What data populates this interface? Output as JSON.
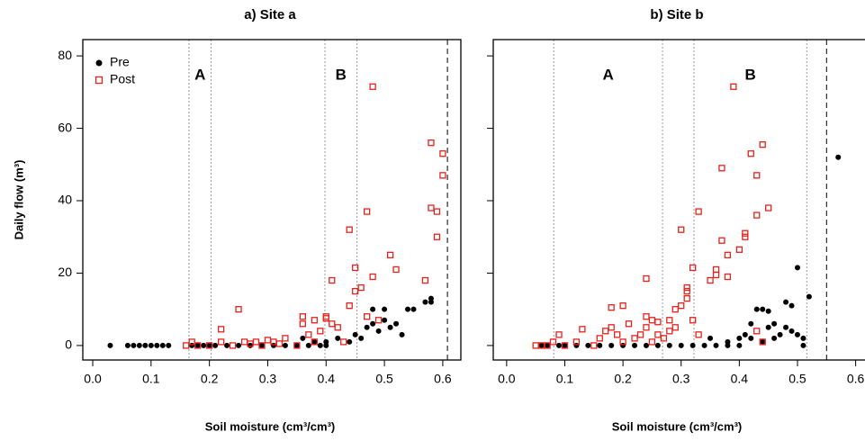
{
  "chart_data": [
    {
      "type": "scatter",
      "title": "a) Site a",
      "xlabel": "Soil moisture (cm³/cm³)",
      "ylabel": "Daily flow (m³)",
      "xlim": [
        -0.017,
        0.631
      ],
      "ylim": [
        -4,
        84.5
      ],
      "xticks": [
        {
          "value": 0,
          "label": "0.0"
        },
        0.1,
        0.2,
        0.3,
        0.4,
        0.5,
        0.6
      ],
      "yticks": [
        0,
        20,
        40,
        60,
        80
      ],
      "ytick_labels": true,
      "legend": "top-left",
      "vlines": [
        0.165,
        0.203,
        0.398,
        0.453
      ],
      "dashed_vline": 0.608,
      "regions": [
        {
          "label": "A",
          "from": 0.165,
          "to": 0.203
        },
        {
          "label": "B",
          "from": 0.398,
          "to": 0.453
        }
      ],
      "series": [
        {
          "name": "Pre",
          "color": "#000000",
          "marker": "circle",
          "x": [
            0.03,
            0.06,
            0.07,
            0.08,
            0.09,
            0.1,
            0.11,
            0.12,
            0.13,
            0.17,
            0.18,
            0.19,
            0.2,
            0.21,
            0.23,
            0.25,
            0.27,
            0.29,
            0.31,
            0.33,
            0.35,
            0.37,
            0.39,
            0.4,
            0.36,
            0.38,
            0.4,
            0.42,
            0.44,
            0.45,
            0.46,
            0.47,
            0.48,
            0.48,
            0.49,
            0.5,
            0.5,
            0.51,
            0.52,
            0.53,
            0.54,
            0.55,
            0.57,
            0.58,
            0.58
          ],
          "y": [
            0,
            0,
            0,
            0,
            0,
            0,
            0,
            0,
            0,
            0,
            0,
            0,
            0,
            0,
            0,
            0,
            0,
            0,
            0,
            0,
            0,
            0,
            0,
            0,
            2,
            1,
            1,
            2,
            1,
            3,
            2,
            5,
            6,
            10,
            4,
            7,
            10,
            5,
            6,
            3,
            10,
            10,
            12,
            13,
            12
          ]
        },
        {
          "name": "Post",
          "color": "#e8211c",
          "marker": "square",
          "x": [
            0.16,
            0.17,
            0.18,
            0.2,
            0.22,
            0.25,
            0.22,
            0.24,
            0.26,
            0.27,
            0.28,
            0.29,
            0.3,
            0.31,
            0.32,
            0.33,
            0.35,
            0.36,
            0.36,
            0.37,
            0.38,
            0.38,
            0.39,
            0.4,
            0.4,
            0.41,
            0.41,
            0.42,
            0.43,
            0.44,
            0.44,
            0.45,
            0.45,
            0.46,
            0.47,
            0.47,
            0.48,
            0.48,
            0.49,
            0.51,
            0.52,
            0.57,
            0.58,
            0.58,
            0.59,
            0.59,
            0.6,
            0.6
          ],
          "y": [
            0,
            1,
            0,
            0,
            4.5,
            10,
            1,
            0,
            1,
            0.5,
            1,
            0,
            1.5,
            1,
            0.5,
            2,
            0,
            8,
            6,
            3,
            7,
            1,
            4,
            7.5,
            8,
            18,
            6,
            5,
            1,
            32,
            11,
            15,
            21.5,
            16,
            8,
            37,
            19,
            71.5,
            7,
            25,
            21,
            18,
            56,
            38,
            37,
            30,
            53,
            47
          ]
        }
      ]
    },
    {
      "type": "scatter",
      "title": "b) Site b",
      "xlabel": "Soil moisture (cm³/cm³)",
      "xlim": [
        -0.023,
        0.63
      ],
      "ylim": [
        -4,
        84.5
      ],
      "xticks": [
        {
          "value": 0,
          "label": "0.0"
        },
        0.1,
        0.2,
        0.3,
        0.4,
        0.5,
        0.6
      ],
      "yticks": [
        0,
        20,
        40,
        60,
        80
      ],
      "ytick_labels": false,
      "vlines": [
        0.081,
        0.268,
        0.322,
        0.516
      ],
      "dashed_vline": 0.55,
      "regions": [
        {
          "label": "A",
          "from": 0.081,
          "to": 0.268
        },
        {
          "label": "B",
          "from": 0.322,
          "to": 0.516
        }
      ],
      "series": [
        {
          "color": "#000000",
          "marker": "circle",
          "x": [
            0.06,
            0.07,
            0.09,
            0.1,
            0.12,
            0.14,
            0.16,
            0.18,
            0.2,
            0.22,
            0.24,
            0.26,
            0.28,
            0.3,
            0.32,
            0.34,
            0.36,
            0.38,
            0.4,
            0.35,
            0.38,
            0.4,
            0.41,
            0.42,
            0.42,
            0.43,
            0.44,
            0.44,
            0.45,
            0.45,
            0.46,
            0.46,
            0.47,
            0.48,
            0.48,
            0.49,
            0.49,
            0.5,
            0.5,
            0.51,
            0.52,
            0.51,
            0.57
          ],
          "y": [
            0,
            0,
            0,
            0,
            0,
            0,
            0,
            0,
            0,
            0,
            0,
            0,
            0,
            0,
            0,
            0,
            0,
            0,
            0,
            2,
            1,
            2,
            3,
            2,
            6,
            10,
            10,
            1,
            5,
            9.5,
            6,
            2,
            3,
            5,
            12,
            4,
            11,
            21.5,
            3,
            0,
            13.5,
            2,
            52
          ]
        },
        {
          "color": "#e8211c",
          "marker": "square",
          "x": [
            0.05,
            0.06,
            0.07,
            0.08,
            0.09,
            0.1,
            0.12,
            0.13,
            0.15,
            0.16,
            0.17,
            0.18,
            0.18,
            0.19,
            0.2,
            0.2,
            0.21,
            0.22,
            0.23,
            0.24,
            0.24,
            0.24,
            0.25,
            0.25,
            0.26,
            0.26,
            0.27,
            0.28,
            0.28,
            0.29,
            0.29,
            0.3,
            0.3,
            0.31,
            0.31,
            0.31,
            0.32,
            0.32,
            0.33,
            0.33,
            0.35,
            0.36,
            0.36,
            0.37,
            0.37,
            0.38,
            0.38,
            0.39,
            0.4,
            0.41,
            0.41,
            0.42,
            0.43,
            0.43,
            0.44,
            0.45,
            0.43,
            0.44
          ],
          "y": [
            0,
            0,
            0,
            1,
            3,
            0,
            1,
            4.5,
            0,
            2,
            4,
            5,
            10.5,
            3,
            11,
            1,
            6,
            2,
            3,
            18.5,
            8,
            5,
            7,
            1,
            6.5,
            3,
            2,
            7,
            4,
            5,
            10,
            11,
            32,
            16,
            15,
            13,
            21.5,
            7,
            37,
            3,
            18,
            21,
            19.5,
            49,
            29,
            25,
            19,
            71.5,
            26.5,
            30,
            31,
            53,
            47,
            36,
            55.5,
            38,
            4,
            1
          ]
        }
      ]
    }
  ]
}
